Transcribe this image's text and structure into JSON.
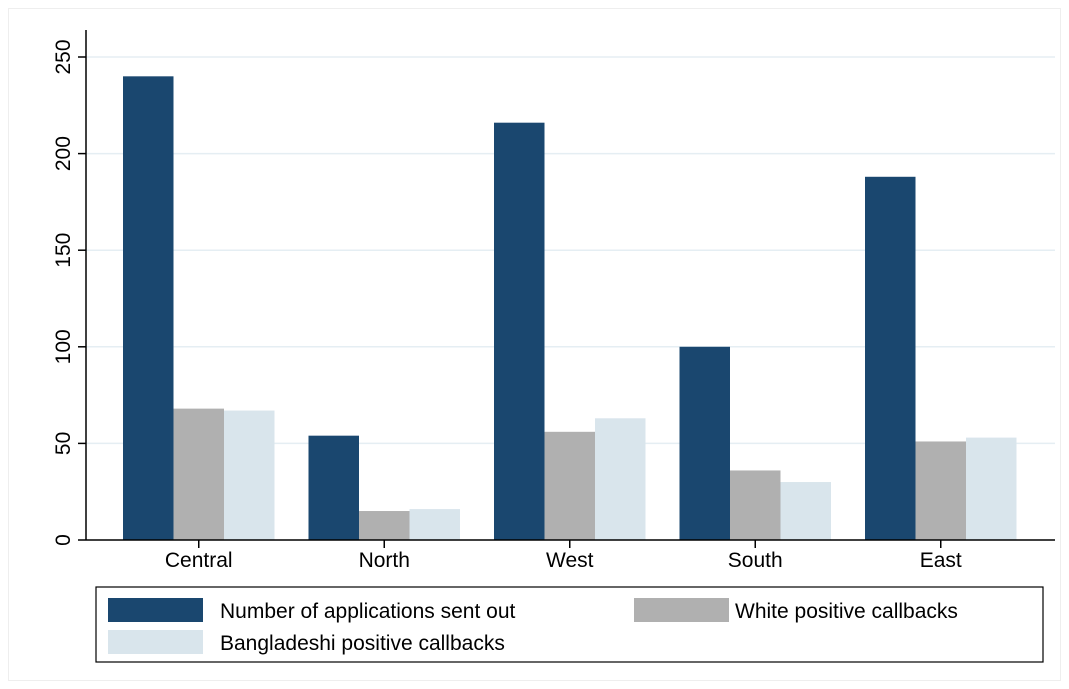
{
  "chart_data": {
    "type": "bar",
    "categories": [
      "Central",
      "North",
      "West",
      "South",
      "East"
    ],
    "series": [
      {
        "name": "Number of applications sent out",
        "values": [
          240,
          54,
          216,
          100,
          188
        ],
        "color": "#1a476f"
      },
      {
        "name": "White positive callbacks",
        "values": [
          68,
          15,
          56,
          36,
          51
        ],
        "color": "#b0b0b0"
      },
      {
        "name": "Bangladeshi positive callbacks",
        "values": [
          67,
          16,
          63,
          30,
          53
        ],
        "color": "#d9e5ec"
      }
    ],
    "yticks": [
      0,
      50,
      100,
      150,
      200,
      250
    ],
    "ylim": [
      0,
      250
    ],
    "title": "",
    "xlabel": "",
    "ylabel": "",
    "grid": true,
    "legend_position": "bottom",
    "colors": {
      "grid": "#e5eef3",
      "axis": "#000000",
      "background": "#ffffff"
    }
  }
}
